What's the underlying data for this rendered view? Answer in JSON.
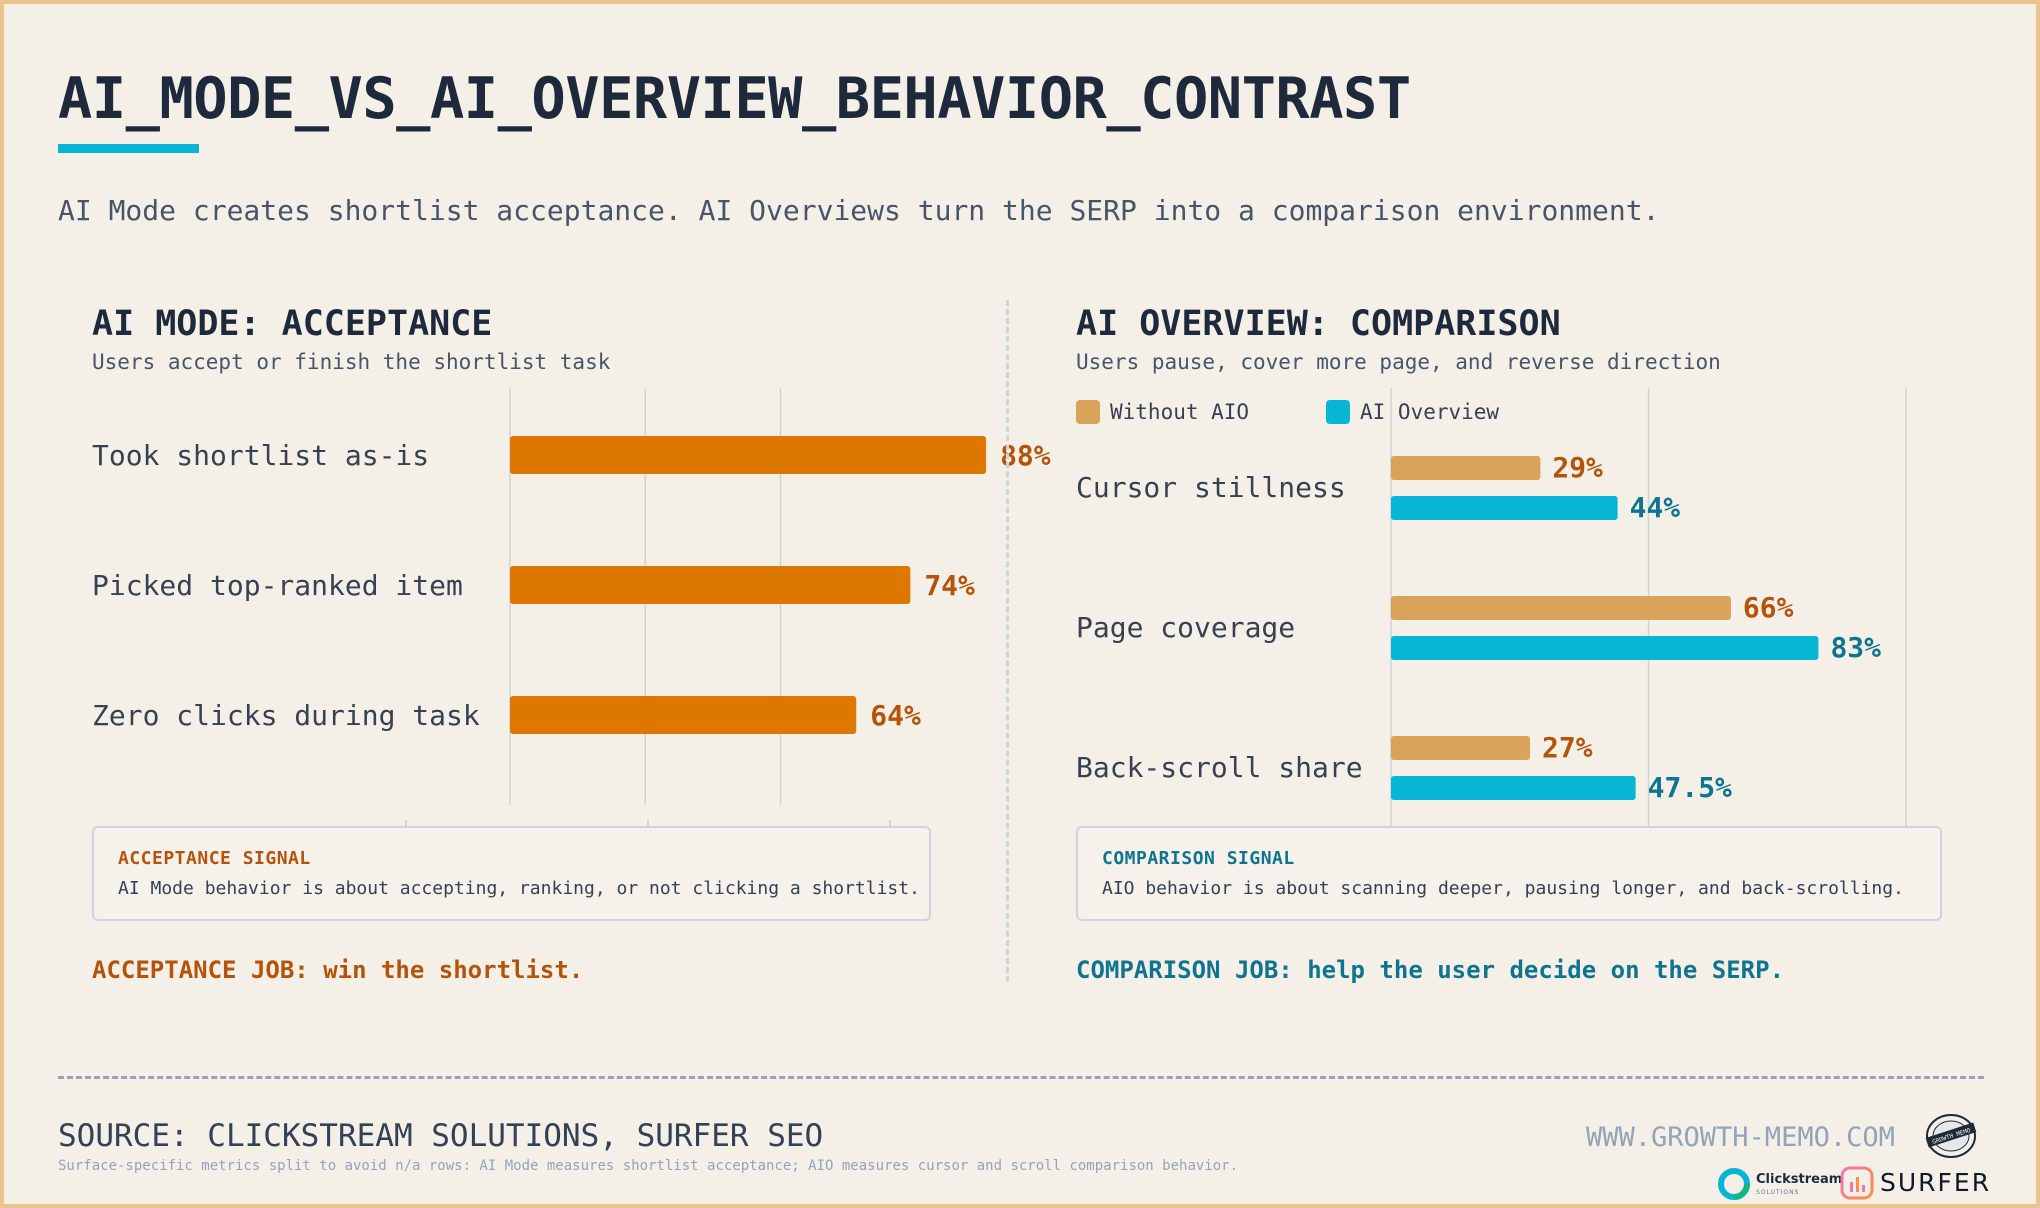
{
  "title": "AI_MODE_VS_AI_OVERVIEW_BEHAVIOR_CONTRAST",
  "subtitle": "AI Mode creates shortlist acceptance. AI Overviews turn the SERP into a comparison environment.",
  "left": {
    "title": "AI MODE: ACCEPTANCE",
    "subtitle": "Users accept or finish the shortlist task",
    "signal_label": "ACCEPTANCE SIGNAL",
    "signal_text": "AI Mode behavior is about accepting, ranking, or not clicking a shortlist.",
    "job": "ACCEPTANCE JOB: win the shortlist."
  },
  "right": {
    "title": "AI OVERVIEW: COMPARISON",
    "subtitle": "Users pause, cover more page, and reverse direction",
    "signal_label": "COMPARISON SIGNAL",
    "signal_text": "AIO behavior is about scanning deeper, pausing longer, and back-scrolling.",
    "job": "COMPARISON JOB: help the user decide on the SERP."
  },
  "chart_data": [
    {
      "type": "bar",
      "orientation": "horizontal",
      "categories": [
        "Took shortlist as-is",
        "Picked top-ranked item",
        "Zero clicks during task"
      ],
      "values": [
        88,
        74,
        64
      ],
      "value_labels": [
        "88%",
        "74%",
        "64%"
      ],
      "xlim": [
        0,
        100
      ],
      "grid": true,
      "colors": {
        "bar": "#dd7700",
        "label": "#b45309"
      }
    },
    {
      "type": "bar",
      "orientation": "horizontal",
      "categories": [
        "Cursor stillness",
        "Page coverage",
        "Back-scroll share"
      ],
      "series": [
        {
          "name": "Without AIO",
          "values": [
            29,
            66,
            27
          ],
          "value_labels": [
            "29%",
            "66%",
            "27%"
          ],
          "color": "#d9a35a",
          "label_color": "#b45309"
        },
        {
          "name": "AI Overview",
          "values": [
            44,
            83,
            47.5
          ],
          "value_labels": [
            "44%",
            "83%",
            "47.5%"
          ],
          "color": "#06b6d4",
          "label_color": "#0e7490"
        }
      ],
      "xlim": [
        0,
        100
      ],
      "grid": true,
      "legend": "top-left"
    }
  ],
  "footer": {
    "source": "SOURCE: CLICKSTREAM SOLUTIONS, SURFER SEO",
    "note": "Surface-specific metrics split to avoid n/a rows: AI Mode measures shortlist acceptance; AIO measures cursor and scroll comparison behavior.",
    "site": "WWW.GROWTH-MEMO.COM",
    "logos": {
      "memo_text": "GROWTH MEMO",
      "clickstream_name": "Clickstream",
      "clickstream_sub": "SOLUTIONS",
      "surfer_name": "SURFER"
    }
  },
  "colors": {
    "accent_cyan": "#06b6d4",
    "accent_orange": "#dd7700",
    "acceptance_text": "#b45309",
    "comparison_text": "#0e7490",
    "background": "#f4f0e8",
    "frame": "#ecc48e"
  },
  "icons": [
    "growth-memo-logo",
    "clickstream-logo",
    "surfer-logo"
  ]
}
